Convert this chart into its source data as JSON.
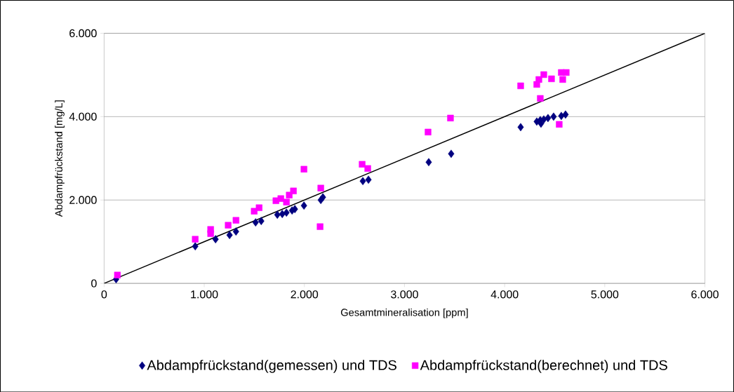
{
  "chart_data": {
    "type": "scatter",
    "xlabel": "Gesamtmineralisation [ppm]",
    "ylabel": "Abdampfrückstand [mg/L]",
    "xlim": [
      0,
      6000
    ],
    "ylim": [
      0,
      6000
    ],
    "xticks": [
      0,
      {
        "value": 1000,
        "label": "1.000"
      },
      {
        "value": 2000,
        "label": "2.000"
      },
      {
        "value": 3000,
        "label": "3.000"
      },
      {
        "value": 4000,
        "label": "4.000"
      },
      {
        "value": 5000,
        "label": "5.000"
      },
      {
        "value": 6000,
        "label": "6.000"
      }
    ],
    "yticks": [
      0,
      {
        "value": 2000,
        "label": "2.000"
      },
      {
        "value": 4000,
        "label": "4.000"
      },
      {
        "value": 6000,
        "label": "6.000"
      }
    ],
    "grid": "y",
    "legend": "bottom",
    "series": [
      {
        "name": "Abdampfrückstand(gemessen) und TDS",
        "color": "#000080",
        "marker": "diamond",
        "x": [
          120,
          910,
          1113,
          1253,
          1317,
          1513,
          1569,
          1730,
          1779,
          1821,
          1877,
          1905,
          1996,
          2164,
          2185,
          2584,
          2640,
          3242,
          3466,
          4160,
          4321,
          4356,
          4363,
          4391,
          4433,
          4489,
          4566,
          4608
        ],
        "values": [
          100,
          890,
          1059,
          1160,
          1244,
          1462,
          1496,
          1647,
          1664,
          1697,
          1748,
          1782,
          1866,
          2000,
          2067,
          2454,
          2487,
          2908,
          3109,
          3748,
          3882,
          3916,
          3832,
          3933,
          3966,
          4000,
          4017,
          4050
        ]
      },
      {
        "name": "Abdampfrückstand(berechnet) und TDS",
        "color": "#ff00ff",
        "marker": "square",
        "x": [
          133,
          910,
          1064,
          1064,
          1239,
          1317,
          1499,
          1548,
          1716,
          1765,
          1821,
          1849,
          1891,
          1996,
          2164,
          2157,
          2577,
          2633,
          3235,
          3459,
          4160,
          4321,
          4342,
          4356,
          4391,
          4468,
          4545,
          4566,
          4580,
          4615
        ],
        "values": [
          200,
          1059,
          1294,
          1193,
          1395,
          1513,
          1731,
          1815,
          1983,
          2034,
          1950,
          2118,
          2218,
          2739,
          2286,
          1361,
          2857,
          2756,
          3630,
          3966,
          4739,
          4773,
          4891,
          4437,
          5008,
          4908,
          3815,
          5059,
          4891,
          5059
        ]
      },
      {
        "type": "line",
        "color": "#000000",
        "marker": "none",
        "x": [
          0,
          6000
        ],
        "values": [
          0,
          6000
        ]
      }
    ]
  }
}
